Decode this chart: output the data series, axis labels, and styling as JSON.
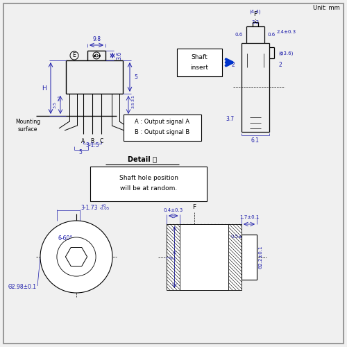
{
  "bg_color": "#f0f0f0",
  "border_color": "#888888",
  "line_color": "#000000",
  "dim_color": "#1a1aaa",
  "title": "Unit: mm",
  "detail_e_text": "Detail Ⓔ",
  "shaft_hole_text": "Shaft hole position\nwill be at random.",
  "signal_text": "A : Output signal A\nB : Output signal B",
  "shaft_insert_text": "Shaft\ninsert",
  "mounting_surface_text": "Mounting\nsurface"
}
